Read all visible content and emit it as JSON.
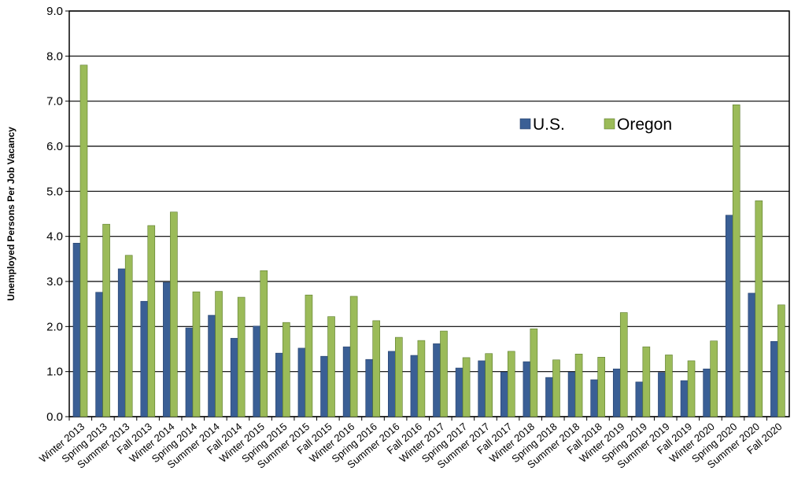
{
  "chart_data": {
    "type": "bar",
    "y_label": "Unemployed Persons Per Job Vacancy",
    "categories": [
      "Winter 2013",
      "Spring 2013",
      "Summer 2013",
      "Fall 2013",
      "Winter 2014",
      "Spring 2014",
      "Summer 2014",
      "Fall 2014",
      "Winter 2015",
      "Spring 2015",
      "Summer 2015",
      "Fall 2015",
      "Winter 2016",
      "Spring 2016",
      "Summer 2016",
      "Fall 2016",
      "Winter 2017",
      "Spring 2017",
      "Summer 2017",
      "Fall 2017",
      "Winter 2018",
      "Spring 2018",
      "Summer 2018",
      "Fall 2018",
      "Winter 2019",
      "Spring 2019",
      "Summer 2019",
      "Fall 2019",
      "Winter 2020",
      "Spring 2020",
      "Summer 2020",
      "Fall 2020"
    ],
    "series": [
      {
        "name": "U.S.",
        "color": "#3a5f95",
        "values": [
          3.85,
          2.76,
          3.28,
          2.56,
          2.98,
          1.97,
          2.25,
          1.74,
          2.01,
          1.41,
          1.52,
          1.34,
          1.55,
          1.27,
          1.45,
          1.36,
          1.62,
          1.08,
          1.24,
          0.99,
          1.22,
          0.87,
          0.99,
          0.82,
          1.06,
          0.77,
          0.98,
          0.8,
          1.06,
          4.47,
          2.74,
          1.67
        ]
      },
      {
        "name": "Oregon",
        "color": "#9bbb59",
        "values": [
          7.8,
          4.27,
          3.58,
          4.24,
          4.54,
          2.77,
          2.78,
          2.65,
          3.24,
          2.09,
          2.7,
          2.22,
          2.67,
          2.13,
          1.76,
          1.69,
          1.9,
          1.31,
          1.4,
          1.45,
          1.95,
          1.26,
          1.39,
          1.32,
          2.31,
          1.55,
          1.37,
          1.24,
          1.68,
          6.92,
          4.79,
          2.48
        ]
      }
    ],
    "ylim": [
      0,
      9
    ],
    "yticks": [
      {
        "value": 0,
        "label": "0.0"
      },
      {
        "value": 1,
        "label": "1.0"
      },
      {
        "value": 2,
        "label": "2.0"
      },
      {
        "value": 3,
        "label": "3.0"
      },
      {
        "value": 4,
        "label": "4.0"
      },
      {
        "value": 5,
        "label": "5.0"
      },
      {
        "value": 6,
        "label": "6.0"
      },
      {
        "value": 7,
        "label": "7.0"
      },
      {
        "value": 8,
        "label": "8.0"
      },
      {
        "value": 9,
        "label": "9.0"
      }
    ],
    "grid": true
  }
}
